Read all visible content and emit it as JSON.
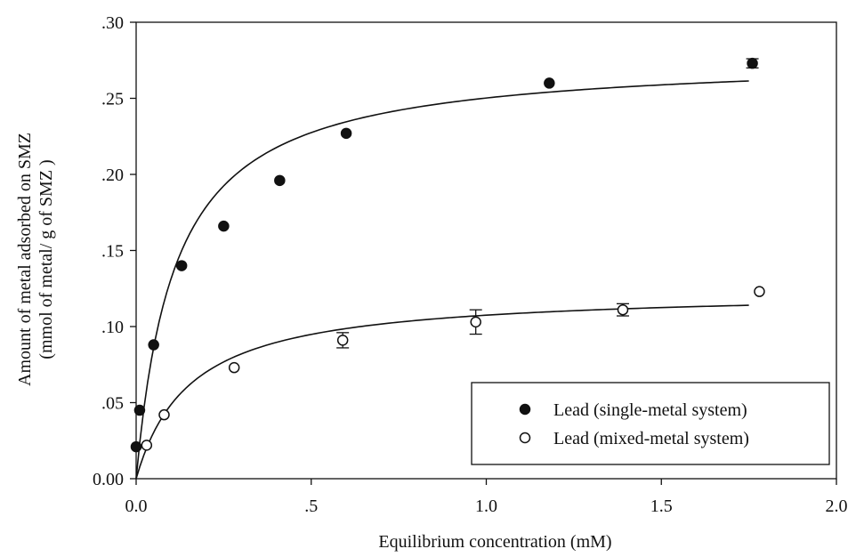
{
  "chart_data": {
    "type": "scatter",
    "xlabel": "Equilibrium concentration (mM)",
    "ylabel_lines": [
      "Amount of metal adsorbed on SMZ",
      "(mmol of metal/ g of SMZ )"
    ],
    "xlim": [
      0,
      2.0
    ],
    "ylim": [
      0,
      0.3
    ],
    "x_ticks": [
      {
        "value": 0.0,
        "label": "0.0"
      },
      {
        "value": 0.5,
        "label": ".5"
      },
      {
        "value": 1.0,
        "label": "1.0"
      },
      {
        "value": 1.5,
        "label": "1.5"
      },
      {
        "value": 2.0,
        "label": "2.0"
      }
    ],
    "y_ticks": [
      {
        "value": 0.0,
        "label": "0.00"
      },
      {
        "value": 0.05,
        "label": ".05"
      },
      {
        "value": 0.1,
        "label": ".10"
      },
      {
        "value": 0.15,
        "label": ".15"
      },
      {
        "value": 0.2,
        "label": ".20"
      },
      {
        "value": 0.25,
        "label": ".25"
      },
      {
        "value": 0.3,
        "label": ".30"
      }
    ],
    "grid": false,
    "legend_position": "bottom-right",
    "series": [
      {
        "name": "Lead (single-metal system)",
        "marker": "filled-circle",
        "color": "#111111",
        "points": [
          {
            "x": 0.0,
            "y": 0.021
          },
          {
            "x": 0.01,
            "y": 0.045
          },
          {
            "x": 0.05,
            "y": 0.088
          },
          {
            "x": 0.13,
            "y": 0.14
          },
          {
            "x": 0.25,
            "y": 0.166
          },
          {
            "x": 0.41,
            "y": 0.196
          },
          {
            "x": 0.6,
            "y": 0.227
          },
          {
            "x": 1.18,
            "y": 0.26
          },
          {
            "x": 1.76,
            "y": 0.273,
            "err": 0.003
          }
        ],
        "fit_curve": {
          "model": "langmuir",
          "qmax": 0.278,
          "K": 9.0,
          "x_range": [
            0.0,
            1.75
          ]
        }
      },
      {
        "name": "Lead (mixed-metal system)",
        "marker": "open-circle",
        "color": "#111111",
        "points": [
          {
            "x": 0.03,
            "y": 0.022
          },
          {
            "x": 0.08,
            "y": 0.042
          },
          {
            "x": 0.28,
            "y": 0.073
          },
          {
            "x": 0.59,
            "y": 0.091,
            "err": 0.005
          },
          {
            "x": 0.97,
            "y": 0.103,
            "err": 0.008
          },
          {
            "x": 1.39,
            "y": 0.111,
            "err": 0.004
          },
          {
            "x": 1.78,
            "y": 0.123
          }
        ],
        "fit_curve": {
          "model": "langmuir",
          "qmax": 0.124,
          "K": 6.5,
          "x_range": [
            0.0,
            1.75
          ]
        }
      }
    ]
  }
}
